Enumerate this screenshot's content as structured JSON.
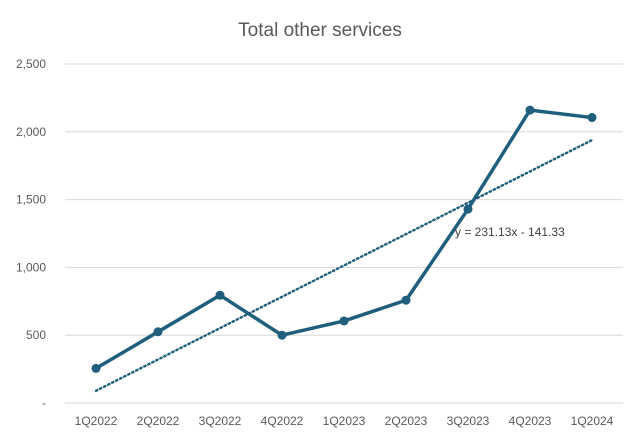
{
  "chart_data": {
    "type": "line",
    "title": "Total other services",
    "xlabel": "",
    "ylabel": "",
    "categories": [
      "1Q2022",
      "2Q2022",
      "3Q2022",
      "4Q2022",
      "1Q2023",
      "2Q2023",
      "3Q2023",
      "4Q2023",
      "1Q2024"
    ],
    "series": [
      {
        "values": [
          255,
          525,
          795,
          500,
          605,
          758,
          1430,
          2160,
          2105
        ],
        "color": "#1f5f7d"
      }
    ],
    "ylim": [
      0,
      2500
    ],
    "yticks": [
      0,
      500,
      1000,
      1500,
      2000,
      2500
    ],
    "ytick_labels": [
      "-",
      "500",
      "1,000",
      "1,500",
      "2,000",
      "2,500"
    ],
    "grid": true,
    "legend": "none",
    "trendline": {
      "type": "linear",
      "slope": 231.13,
      "intercept": -141.33,
      "equation": "y = 231.13x - 141.33",
      "color": "#1f5f7d"
    }
  }
}
